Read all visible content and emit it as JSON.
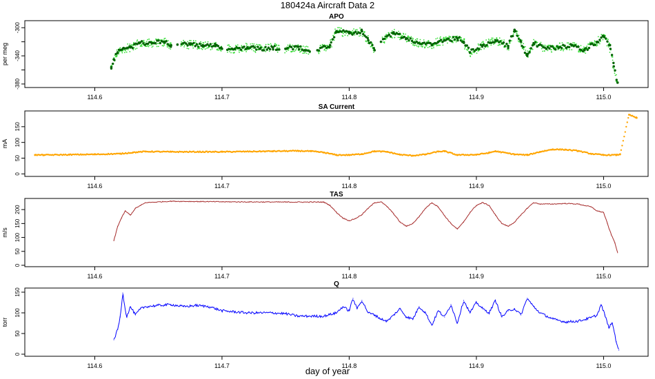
{
  "figure": {
    "title": "180424a   Aircraft Data 2",
    "xlabel": "day of year"
  },
  "chart_data": [
    {
      "type": "scatter",
      "title": "APO",
      "ylabel": "per meg",
      "xlim": [
        114.545,
        115.035
      ],
      "ylim": [
        -385,
        -290
      ],
      "xticks": [
        114.6,
        114.7,
        114.8,
        114.9,
        115.0
      ],
      "xtick_labels": [
        "114.6",
        "114.7",
        "114.8",
        "114.9",
        "115.0"
      ],
      "yticks": [
        -300,
        -320,
        -340,
        -360,
        -380
      ],
      "ytick_labels": [
        "-300",
        "",
        "-340",
        "",
        "-380"
      ],
      "colors": {
        "series": "#006400",
        "spread": "#33dd33"
      },
      "series": [
        {
          "x": [
            114.613,
            114.615,
            114.618,
            114.622,
            114.628,
            114.635,
            114.645,
            114.655,
            114.66,
            114.665,
            114.675,
            114.685,
            114.695,
            114.7,
            114.71,
            114.72,
            114.73,
            114.74,
            114.75,
            114.76,
            114.765,
            114.775,
            114.785,
            114.79,
            114.8,
            114.81,
            114.815,
            114.82,
            114.825,
            114.835,
            114.845,
            114.855,
            114.865,
            114.87,
            114.875,
            114.885,
            114.89,
            114.895,
            114.905,
            114.915,
            114.925,
            114.93,
            114.935,
            114.94,
            114.945,
            114.955,
            114.965,
            114.975,
            114.985,
            114.995,
            115.0,
            115.005,
            115.008,
            115.011
          ],
          "y": [
            -356,
            -345,
            -335,
            -330,
            -328,
            -322,
            -322,
            -320,
            -325,
            -324,
            -324,
            -325,
            -326,
            -330,
            -330,
            -328,
            -330,
            -328,
            -330,
            -327,
            -332,
            -332,
            -325,
            -305,
            -308,
            -305,
            -318,
            -332,
            -320,
            -308,
            -315,
            -322,
            -325,
            -320,
            -318,
            -315,
            -320,
            -335,
            -325,
            -318,
            -326,
            -303,
            -320,
            -340,
            -322,
            -330,
            -328,
            -325,
            -332,
            -320,
            -312,
            -325,
            -355,
            -378
          ]
        }
      ]
    },
    {
      "type": "scatter",
      "title": "SA Current",
      "ylabel": "mA",
      "xlim": [
        114.545,
        115.035
      ],
      "ylim": [
        -8,
        200
      ],
      "xticks": [
        114.6,
        114.7,
        114.8,
        114.9,
        115.0
      ],
      "xtick_labels": [
        "114.6",
        "114.7",
        "114.8",
        "114.9",
        "115.0"
      ],
      "yticks": [
        0,
        50,
        100,
        150
      ],
      "ytick_labels": [
        "0",
        "50",
        "100",
        "150"
      ],
      "colors": {
        "series": "#ffa500"
      },
      "series": [
        {
          "x": [
            114.553,
            114.56,
            114.58,
            114.6,
            114.62,
            114.63,
            114.64,
            114.66,
            114.7,
            114.74,
            114.76,
            114.77,
            114.78,
            114.79,
            114.8,
            114.81,
            114.82,
            114.83,
            114.84,
            114.85,
            114.86,
            114.87,
            114.875,
            114.885,
            114.9,
            114.91,
            114.915,
            114.93,
            114.94,
            114.95,
            114.96,
            114.97,
            114.98,
            114.99,
            115.0,
            115.01,
            115.013,
            115.02,
            115.026
          ],
          "y": [
            60,
            60,
            61,
            62,
            64,
            68,
            71,
            70,
            70,
            72,
            73,
            72,
            68,
            60,
            60,
            63,
            72,
            70,
            61,
            58,
            62,
            71,
            72,
            60,
            61,
            67,
            72,
            62,
            60,
            70,
            78,
            77,
            73,
            64,
            60,
            60,
            62,
            188,
            178
          ]
        }
      ]
    },
    {
      "type": "line",
      "title": "TAS",
      "ylabel": "m/s",
      "xlim": [
        114.545,
        115.035
      ],
      "ylim": [
        -5,
        240
      ],
      "xticks": [
        114.6,
        114.7,
        114.8,
        114.9,
        115.0
      ],
      "xtick_labels": [
        "114.6",
        "114.7",
        "114.8",
        "114.9",
        "115.0"
      ],
      "yticks": [
        0,
        50,
        100,
        150,
        200
      ],
      "ytick_labels": [
        "0",
        "50",
        "100",
        "150",
        "200"
      ],
      "colors": {
        "series": "#a52a2a"
      },
      "series": [
        {
          "x": [
            114.615,
            114.618,
            114.621,
            114.624,
            114.628,
            114.632,
            114.636,
            114.64,
            114.66,
            114.7,
            114.75,
            114.78,
            114.785,
            114.79,
            114.795,
            114.8,
            114.805,
            114.81,
            114.815,
            114.82,
            114.825,
            114.83,
            114.835,
            114.84,
            114.845,
            114.85,
            114.855,
            114.86,
            114.865,
            114.87,
            114.875,
            114.88,
            114.885,
            114.89,
            114.895,
            114.9,
            114.905,
            114.91,
            114.915,
            114.92,
            114.925,
            114.93,
            114.935,
            114.94,
            114.945,
            114.95,
            114.96,
            114.97,
            114.98,
            114.99,
            114.995,
            115.0,
            115.003,
            115.006,
            115.009,
            115.011
          ],
          "y": [
            88,
            140,
            170,
            195,
            180,
            205,
            215,
            225,
            230,
            228,
            227,
            227,
            215,
            190,
            170,
            160,
            168,
            182,
            205,
            225,
            228,
            210,
            185,
            155,
            140,
            150,
            175,
            205,
            225,
            210,
            178,
            150,
            130,
            155,
            190,
            215,
            225,
            215,
            180,
            150,
            140,
            155,
            180,
            205,
            225,
            220,
            220,
            222,
            220,
            210,
            195,
            190,
            150,
            110,
            80,
            45
          ]
        }
      ]
    },
    {
      "type": "line",
      "title": "Q",
      "ylabel": "torr",
      "xlim": [
        114.545,
        115.035
      ],
      "ylim": [
        -5,
        160
      ],
      "xticks": [
        114.6,
        114.7,
        114.8,
        114.9,
        115.0
      ],
      "xtick_labels": [
        "114.6",
        "114.7",
        "114.8",
        "114.9",
        "115.0"
      ],
      "yticks": [
        0,
        50,
        100,
        150
      ],
      "ytick_labels": [
        "0",
        "50",
        "100",
        "150"
      ],
      "colors": {
        "series": "#0000ff"
      },
      "series": [
        {
          "x": [
            114.615,
            114.618,
            114.62,
            114.622,
            114.625,
            114.628,
            114.632,
            114.636,
            114.64,
            114.65,
            114.66,
            114.67,
            114.68,
            114.69,
            114.7,
            114.72,
            114.74,
            114.75,
            114.76,
            114.78,
            114.79,
            114.795,
            114.8,
            114.803,
            114.806,
            114.81,
            114.815,
            114.82,
            114.825,
            114.83,
            114.835,
            114.84,
            114.845,
            114.85,
            114.855,
            114.86,
            114.865,
            114.87,
            114.875,
            114.88,
            114.885,
            114.89,
            114.895,
            114.9,
            114.905,
            114.91,
            114.915,
            114.92,
            114.925,
            114.93,
            114.935,
            114.94,
            114.945,
            114.95,
            114.96,
            114.97,
            114.98,
            114.99,
            114.995,
            114.998,
            115.001,
            115.004,
            115.007,
            115.01,
            115.012
          ],
          "y": [
            35,
            60,
            90,
            148,
            90,
            115,
            95,
            110,
            115,
            118,
            120,
            115,
            118,
            115,
            105,
            100,
            100,
            98,
            92,
            92,
            100,
            115,
            105,
            135,
            110,
            130,
            100,
            95,
            85,
            80,
            95,
            110,
            90,
            85,
            115,
            100,
            70,
            105,
            90,
            120,
            75,
            130,
            100,
            125,
            110,
            100,
            130,
            90,
            105,
            110,
            95,
            135,
            115,
            100,
            85,
            78,
            80,
            88,
            95,
            120,
            95,
            65,
            75,
            30,
            10
          ]
        }
      ]
    }
  ]
}
